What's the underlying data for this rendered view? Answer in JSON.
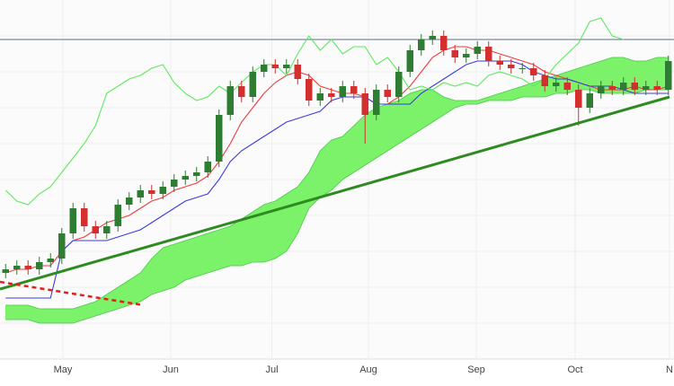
{
  "chart_data": {
    "type": "candlestick",
    "xlim": [
      -0.5,
      59.5
    ],
    "ylim": [
      0,
      100
    ],
    "yticks": [
      10,
      20,
      30,
      40,
      50,
      60,
      70,
      80,
      90
    ],
    "grid": true,
    "xticks": [
      {
        "value": 5.1,
        "label": "May"
      },
      {
        "value": 14.7,
        "label": "Jun"
      },
      {
        "value": 23.7,
        "label": "Jul"
      },
      {
        "value": 32.3,
        "label": "Aug"
      },
      {
        "value": 41.9,
        "label": "Sep"
      },
      {
        "value": 50.7,
        "label": "Oct"
      },
      {
        "value": 59.1,
        "label": "N"
      }
    ],
    "up_color": "#2e7d32",
    "down_color": "#d32f2f",
    "open": [
      24,
      25,
      26,
      25,
      27,
      28,
      35,
      42,
      37,
      35,
      37,
      43,
      45,
      47,
      46,
      48,
      50,
      51,
      52,
      55,
      68,
      76,
      73,
      80,
      82,
      81,
      82,
      78,
      72,
      74,
      73,
      76,
      74,
      68,
      75,
      73,
      80,
      86,
      89,
      90,
      86,
      84,
      85,
      87,
      83,
      82,
      81,
      81,
      79,
      76,
      77,
      75,
      70,
      74,
      76,
      75,
      77,
      75,
      76,
      75
    ],
    "high": [
      26.5,
      27.5,
      27.5,
      28.5,
      29.5,
      36.5,
      43.5,
      43.5,
      38.5,
      38.5,
      44.5,
      46.5,
      48.5,
      48.5,
      49.5,
      51.5,
      52.5,
      53.5,
      56.5,
      69.5,
      77.5,
      77.5,
      81.5,
      83.5,
      83.5,
      83.5,
      83.5,
      79.5,
      75.5,
      75.5,
      77.5,
      77.5,
      75.5,
      76.5,
      76.5,
      81.5,
      87.5,
      90.5,
      91.5,
      91.5,
      87.5,
      86.5,
      88.5,
      88.5,
      84.5,
      83.5,
      82.5,
      82.5,
      80.5,
      78.5,
      78.5,
      76.5,
      75.5,
      77.5,
      77.5,
      78.5,
      78.5,
      77.5,
      77.5,
      84.5
    ],
    "low": [
      22.5,
      23.5,
      23.5,
      23.5,
      25.5,
      26.5,
      33.5,
      35.5,
      33.5,
      33.5,
      35.5,
      41.5,
      43.5,
      44.5,
      44.5,
      46.5,
      48.5,
      49.5,
      50.5,
      53.5,
      66.5,
      71.5,
      71.5,
      78.5,
      79.5,
      79.5,
      76.5,
      70.5,
      70.5,
      71.5,
      71.5,
      72.5,
      60,
      66.5,
      71.5,
      71.5,
      78.5,
      84.5,
      87.5,
      84.5,
      82.5,
      82.5,
      83.5,
      81.5,
      80.5,
      79.5,
      79.5,
      77.5,
      74.5,
      74.5,
      73.5,
      65,
      68.5,
      72.5,
      73.5,
      73.5,
      73.5,
      73.5,
      73.5,
      73.5
    ],
    "close": [
      25,
      26,
      25,
      27,
      28,
      35,
      42,
      37,
      35,
      37,
      43,
      45,
      47,
      46,
      48,
      50,
      51,
      52,
      55,
      68,
      76,
      73,
      80,
      82,
      81,
      82,
      78,
      72,
      74,
      73,
      76,
      74,
      68,
      75,
      73,
      80,
      86,
      89,
      90,
      86,
      84,
      85,
      87,
      83,
      82,
      81,
      81,
      79,
      76,
      77,
      75,
      70,
      74,
      76,
      75,
      77,
      75,
      76,
      75,
      83
    ],
    "cloud_color": "#7cf26a",
    "senkou_a": [
      15,
      15,
      15,
      14,
      14,
      14,
      14,
      15,
      16,
      18,
      20,
      22,
      24,
      28,
      31,
      32,
      33,
      34,
      35,
      36,
      37,
      39,
      41,
      43,
      44,
      46,
      48,
      52,
      58,
      61,
      62,
      65,
      68,
      70,
      71,
      72,
      74,
      75,
      75,
      73,
      72,
      72,
      72,
      73,
      74,
      75,
      76,
      77,
      78,
      79,
      80,
      81,
      82,
      83,
      84,
      84,
      83,
      83,
      84,
      84
    ],
    "senkou_b": [
      11,
      11,
      11,
      10,
      10,
      10,
      10,
      11,
      12,
      13,
      14,
      15,
      16,
      18,
      19,
      20,
      22,
      23,
      24,
      25,
      26,
      26,
      27,
      27,
      28,
      30,
      35,
      42,
      45,
      47,
      50,
      52,
      54,
      56,
      58,
      60,
      62,
      64,
      66,
      68,
      70,
      71,
      71,
      72,
      72,
      72,
      73,
      73,
      73,
      74,
      74,
      75,
      75,
      74,
      74,
      74,
      74,
      75,
      75,
      75
    ],
    "lines": [
      {
        "color": "#ef3b3b",
        "values": [
          24,
          25,
          25,
          26,
          26,
          30,
          33,
          34,
          36,
          38,
          39,
          40,
          42,
          44,
          45,
          47,
          48,
          49,
          51,
          55,
          60,
          66,
          70,
          74,
          77,
          79,
          80,
          79,
          76,
          75,
          74,
          74,
          73,
          71,
          71,
          73,
          76,
          80,
          84,
          86,
          87,
          87,
          86,
          86,
          85,
          84,
          83,
          82,
          80,
          79,
          78,
          77,
          76,
          75,
          75,
          75,
          76,
          75,
          75,
          76
        ]
      },
      {
        "color": "#3b3bdf",
        "values": [
          17,
          17,
          17,
          17,
          17,
          30,
          33,
          33,
          33,
          33,
          34,
          35,
          36,
          38,
          40,
          42,
          44,
          45,
          46,
          50,
          55,
          58,
          60,
          62,
          64,
          66,
          67,
          68,
          69,
          72,
          73,
          73,
          73,
          71,
          71,
          71,
          71,
          74,
          76,
          78,
          80,
          82,
          83,
          83,
          83,
          83,
          82,
          80,
          79,
          78,
          78,
          77,
          76,
          76,
          76,
          75,
          74,
          74,
          74,
          74
        ]
      },
      {
        "color": "#5ee85e",
        "values": [
          47,
          44,
          43,
          46,
          48,
          52,
          56,
          60,
          65,
          74,
          76,
          78,
          79,
          81,
          82,
          77,
          74,
          72,
          73,
          76,
          74,
          77,
          80,
          82,
          82,
          79,
          85,
          90,
          86,
          89,
          85,
          87,
          87,
          82,
          84,
          80,
          75,
          76,
          75,
          77,
          76,
          77,
          76,
          79,
          80,
          79,
          78,
          76,
          78,
          82,
          85,
          88,
          94,
          95,
          90,
          89,
          null,
          null,
          null,
          null
        ]
      }
    ],
    "level": 89,
    "level_color": "#5a6e8c",
    "trendline": {
      "x": [
        -0.5,
        59.1
      ],
      "y": [
        19.5,
        73
      ],
      "color": "#2e8b22"
    },
    "dashed_line": {
      "x": [
        -0.5,
        12.3
      ],
      "y": [
        21.5,
        15
      ],
      "color": "#e0201c"
    }
  }
}
